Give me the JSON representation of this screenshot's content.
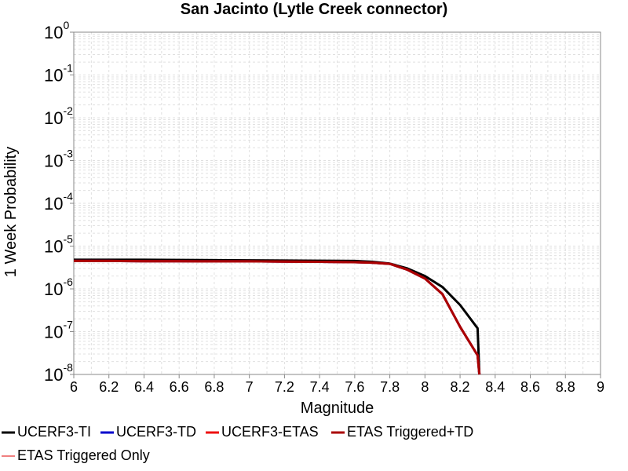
{
  "chart_data": {
    "type": "line",
    "title": "San Jacinto (Lytle Creek connector)",
    "xlabel": "Magnitude",
    "ylabel": "1 Week Probability",
    "xlim": [
      6,
      9
    ],
    "ylim": [
      1e-08,
      1
    ],
    "yscale": "log",
    "grid": true,
    "legend_placement": "bottom",
    "x_ticks": [
      "6",
      "6.2",
      "6.4",
      "6.6",
      "6.8",
      "7",
      "7.2",
      "7.4",
      "7.6",
      "7.8",
      "8",
      "8.2",
      "8.4",
      "8.6",
      "8.8",
      "9"
    ],
    "y_ticks": [
      {
        "base": "10",
        "exp": "0",
        "value": 1
      },
      {
        "base": "10",
        "exp": "-1",
        "value": 0.1
      },
      {
        "base": "10",
        "exp": "-2",
        "value": 0.01
      },
      {
        "base": "10",
        "exp": "-3",
        "value": 0.001
      },
      {
        "base": "10",
        "exp": "-4",
        "value": 0.0001
      },
      {
        "base": "10",
        "exp": "-5",
        "value": 1e-05
      },
      {
        "base": "10",
        "exp": "-6",
        "value": 1e-06
      },
      {
        "base": "10",
        "exp": "-7",
        "value": 1e-07
      },
      {
        "base": "10",
        "exp": "-8",
        "value": 1e-08
      }
    ],
    "series": [
      {
        "name": "UCERF3-TI",
        "color": "#000000",
        "x": [
          6.0,
          6.2,
          6.4,
          6.6,
          6.8,
          7.0,
          7.2,
          7.4,
          7.6,
          7.7,
          7.8,
          7.9,
          8.0,
          8.1,
          8.2,
          8.3,
          8.31
        ],
        "y": [
          4.8e-06,
          4.8e-06,
          4.8e-06,
          4.75e-06,
          4.7e-06,
          4.65e-06,
          4.6e-06,
          4.55e-06,
          4.5e-06,
          4.3e-06,
          3.9e-06,
          3e-06,
          2e-06,
          1.1e-06,
          4.2e-07,
          1.2e-07,
          1e-08
        ]
      },
      {
        "name": "UCERF3-TD",
        "color": "#0000cc",
        "x": [
          6.0,
          6.2,
          6.4,
          6.6,
          6.8,
          7.0,
          7.2,
          7.4,
          7.6,
          7.7,
          7.8,
          7.9,
          8.0,
          8.1,
          8.2,
          8.3,
          8.31
        ],
        "y": [
          4.5e-06,
          4.5e-06,
          4.45e-06,
          4.45e-06,
          4.4e-06,
          4.4e-06,
          4.35e-06,
          4.3e-06,
          4.2e-06,
          4.1e-06,
          3.85e-06,
          2.8e-06,
          1.75e-06,
          7.5e-07,
          1.3e-07,
          2.8e-08,
          1e-08
        ]
      },
      {
        "name": "UCERF3-ETAS",
        "color": "#ee1111",
        "x": [
          6.0,
          6.2,
          6.4,
          6.6,
          6.8,
          7.0,
          7.2,
          7.4,
          7.6,
          7.7,
          7.8,
          7.9,
          8.0,
          8.1,
          8.2,
          8.3,
          8.31
        ],
        "y": [
          4.5e-06,
          4.5e-06,
          4.45e-06,
          4.45e-06,
          4.4e-06,
          4.4e-06,
          4.35e-06,
          4.3e-06,
          4.2e-06,
          4.1e-06,
          3.85e-06,
          2.8e-06,
          1.75e-06,
          7.5e-07,
          1.3e-07,
          2.8e-08,
          1e-08
        ]
      },
      {
        "name": "ETAS Triggered+TD",
        "color": "#aa0000",
        "x": [
          6.0,
          6.2,
          6.4,
          6.6,
          6.8,
          7.0,
          7.2,
          7.4,
          7.6,
          7.7,
          7.8,
          7.9,
          8.0,
          8.1,
          8.2,
          8.3,
          8.31
        ],
        "y": [
          4.5e-06,
          4.5e-06,
          4.45e-06,
          4.45e-06,
          4.4e-06,
          4.4e-06,
          4.35e-06,
          4.3e-06,
          4.2e-06,
          4.1e-06,
          3.85e-06,
          2.8e-06,
          1.75e-06,
          7.5e-07,
          1.3e-07,
          2.8e-08,
          1e-08
        ]
      },
      {
        "name": "ETAS Triggered Only",
        "color": "#f08080",
        "x": [],
        "y": []
      }
    ]
  }
}
